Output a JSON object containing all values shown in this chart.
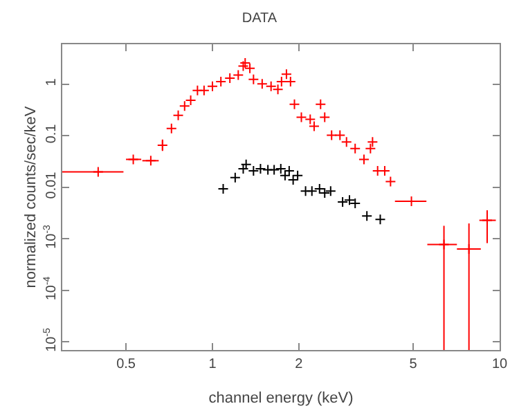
{
  "chart_data": {
    "type": "scatter",
    "title": "DATA",
    "xlabel": "channel energy (keV)",
    "ylabel": "normalized counts/sec/keV",
    "log": "xy",
    "marker": "cross",
    "xlim": [
      0.3,
      10
    ],
    "xticks": [
      0.5,
      1,
      2,
      5,
      10
    ],
    "ylim": [
      7e-06,
      6
    ],
    "yticks": [
      {
        "value": 1e-05,
        "label": "10$^{-5}$"
      },
      {
        "value": 0.0001,
        "label": "10$^{-4}$"
      },
      {
        "value": 0.001,
        "label": "10$^{-3}$"
      },
      0.01,
      0.1,
      1
    ],
    "series": [
      {
        "color": "#ff0000",
        "x": [
          0.4,
          0.53,
          0.61,
          0.67,
          0.72,
          0.76,
          0.8,
          0.84,
          0.887,
          0.935,
          1.0,
          1.07,
          1.15,
          1.23,
          1.28,
          1.3,
          1.35,
          1.39,
          1.49,
          1.6,
          1.69,
          1.74,
          1.81,
          1.87,
          1.93,
          2.04,
          2.19,
          2.26,
          2.38,
          2.46,
          2.6,
          2.78,
          2.93,
          3.14,
          3.37,
          3.55,
          3.61,
          3.76,
          3.98,
          4.17,
          4.93,
          6.4,
          7.82,
          9.05
        ],
        "values": [
          0.02,
          0.035,
          0.033,
          0.066,
          0.139,
          0.25,
          0.38,
          0.49,
          0.76,
          0.76,
          0.92,
          1.13,
          1.32,
          1.52,
          2.27,
          2.6,
          2.05,
          1.25,
          1.02,
          0.92,
          0.8,
          1.13,
          1.58,
          1.13,
          0.41,
          0.23,
          0.21,
          0.154,
          0.41,
          0.23,
          0.103,
          0.103,
          0.076,
          0.057,
          0.035,
          0.057,
          0.076,
          0.021,
          0.021,
          0.013,
          0.0054,
          0.00078,
          0.00064,
          0.0023
        ],
        "errors": [
          null,
          null,
          null,
          [
            0.051,
            0.085
          ],
          null,
          null,
          null,
          null,
          null,
          null,
          null,
          null,
          null,
          null,
          null,
          null,
          null,
          null,
          null,
          null,
          null,
          null,
          null,
          null,
          null,
          null,
          null,
          null,
          null,
          null,
          null,
          null,
          null,
          null,
          null,
          null,
          null,
          null,
          null,
          null,
          null,
          [
            7e-06,
            0.0018
          ],
          [
            7e-06,
            0.002
          ],
          [
            0.00083,
            0.0036
          ]
        ],
        "xerrors": [
          [
            0.3,
            0.49
          ],
          [
            0.5,
            0.565
          ],
          [
            0.57,
            0.65
          ],
          null,
          null,
          null,
          null,
          null,
          null,
          null,
          null,
          null,
          null,
          null,
          null,
          null,
          null,
          null,
          null,
          null,
          null,
          null,
          null,
          null,
          null,
          null,
          null,
          null,
          null,
          null,
          null,
          null,
          null,
          null,
          null,
          null,
          null,
          null,
          null,
          null,
          [
            4.32,
            5.56
          ],
          [
            5.6,
            7.1
          ],
          [
            7.1,
            8.6
          ],
          [
            8.5,
            9.7
          ]
        ]
      },
      {
        "color": "#000000",
        "x": [
          1.09,
          1.2,
          1.28,
          1.31,
          1.39,
          1.47,
          1.56,
          1.64,
          1.73,
          1.79,
          1.85,
          1.91,
          1.98,
          2.11,
          2.22,
          2.36,
          2.46,
          2.58,
          2.84,
          3.0,
          3.14,
          3.45,
          3.84
        ],
        "values": [
          0.0094,
          0.0155,
          0.023,
          0.028,
          0.021,
          0.023,
          0.022,
          0.022,
          0.023,
          0.017,
          0.021,
          0.014,
          0.017,
          0.0085,
          0.0085,
          0.0094,
          0.0078,
          0.0085,
          0.0052,
          0.0057,
          0.0049,
          0.0028,
          0.0024
        ]
      }
    ]
  }
}
